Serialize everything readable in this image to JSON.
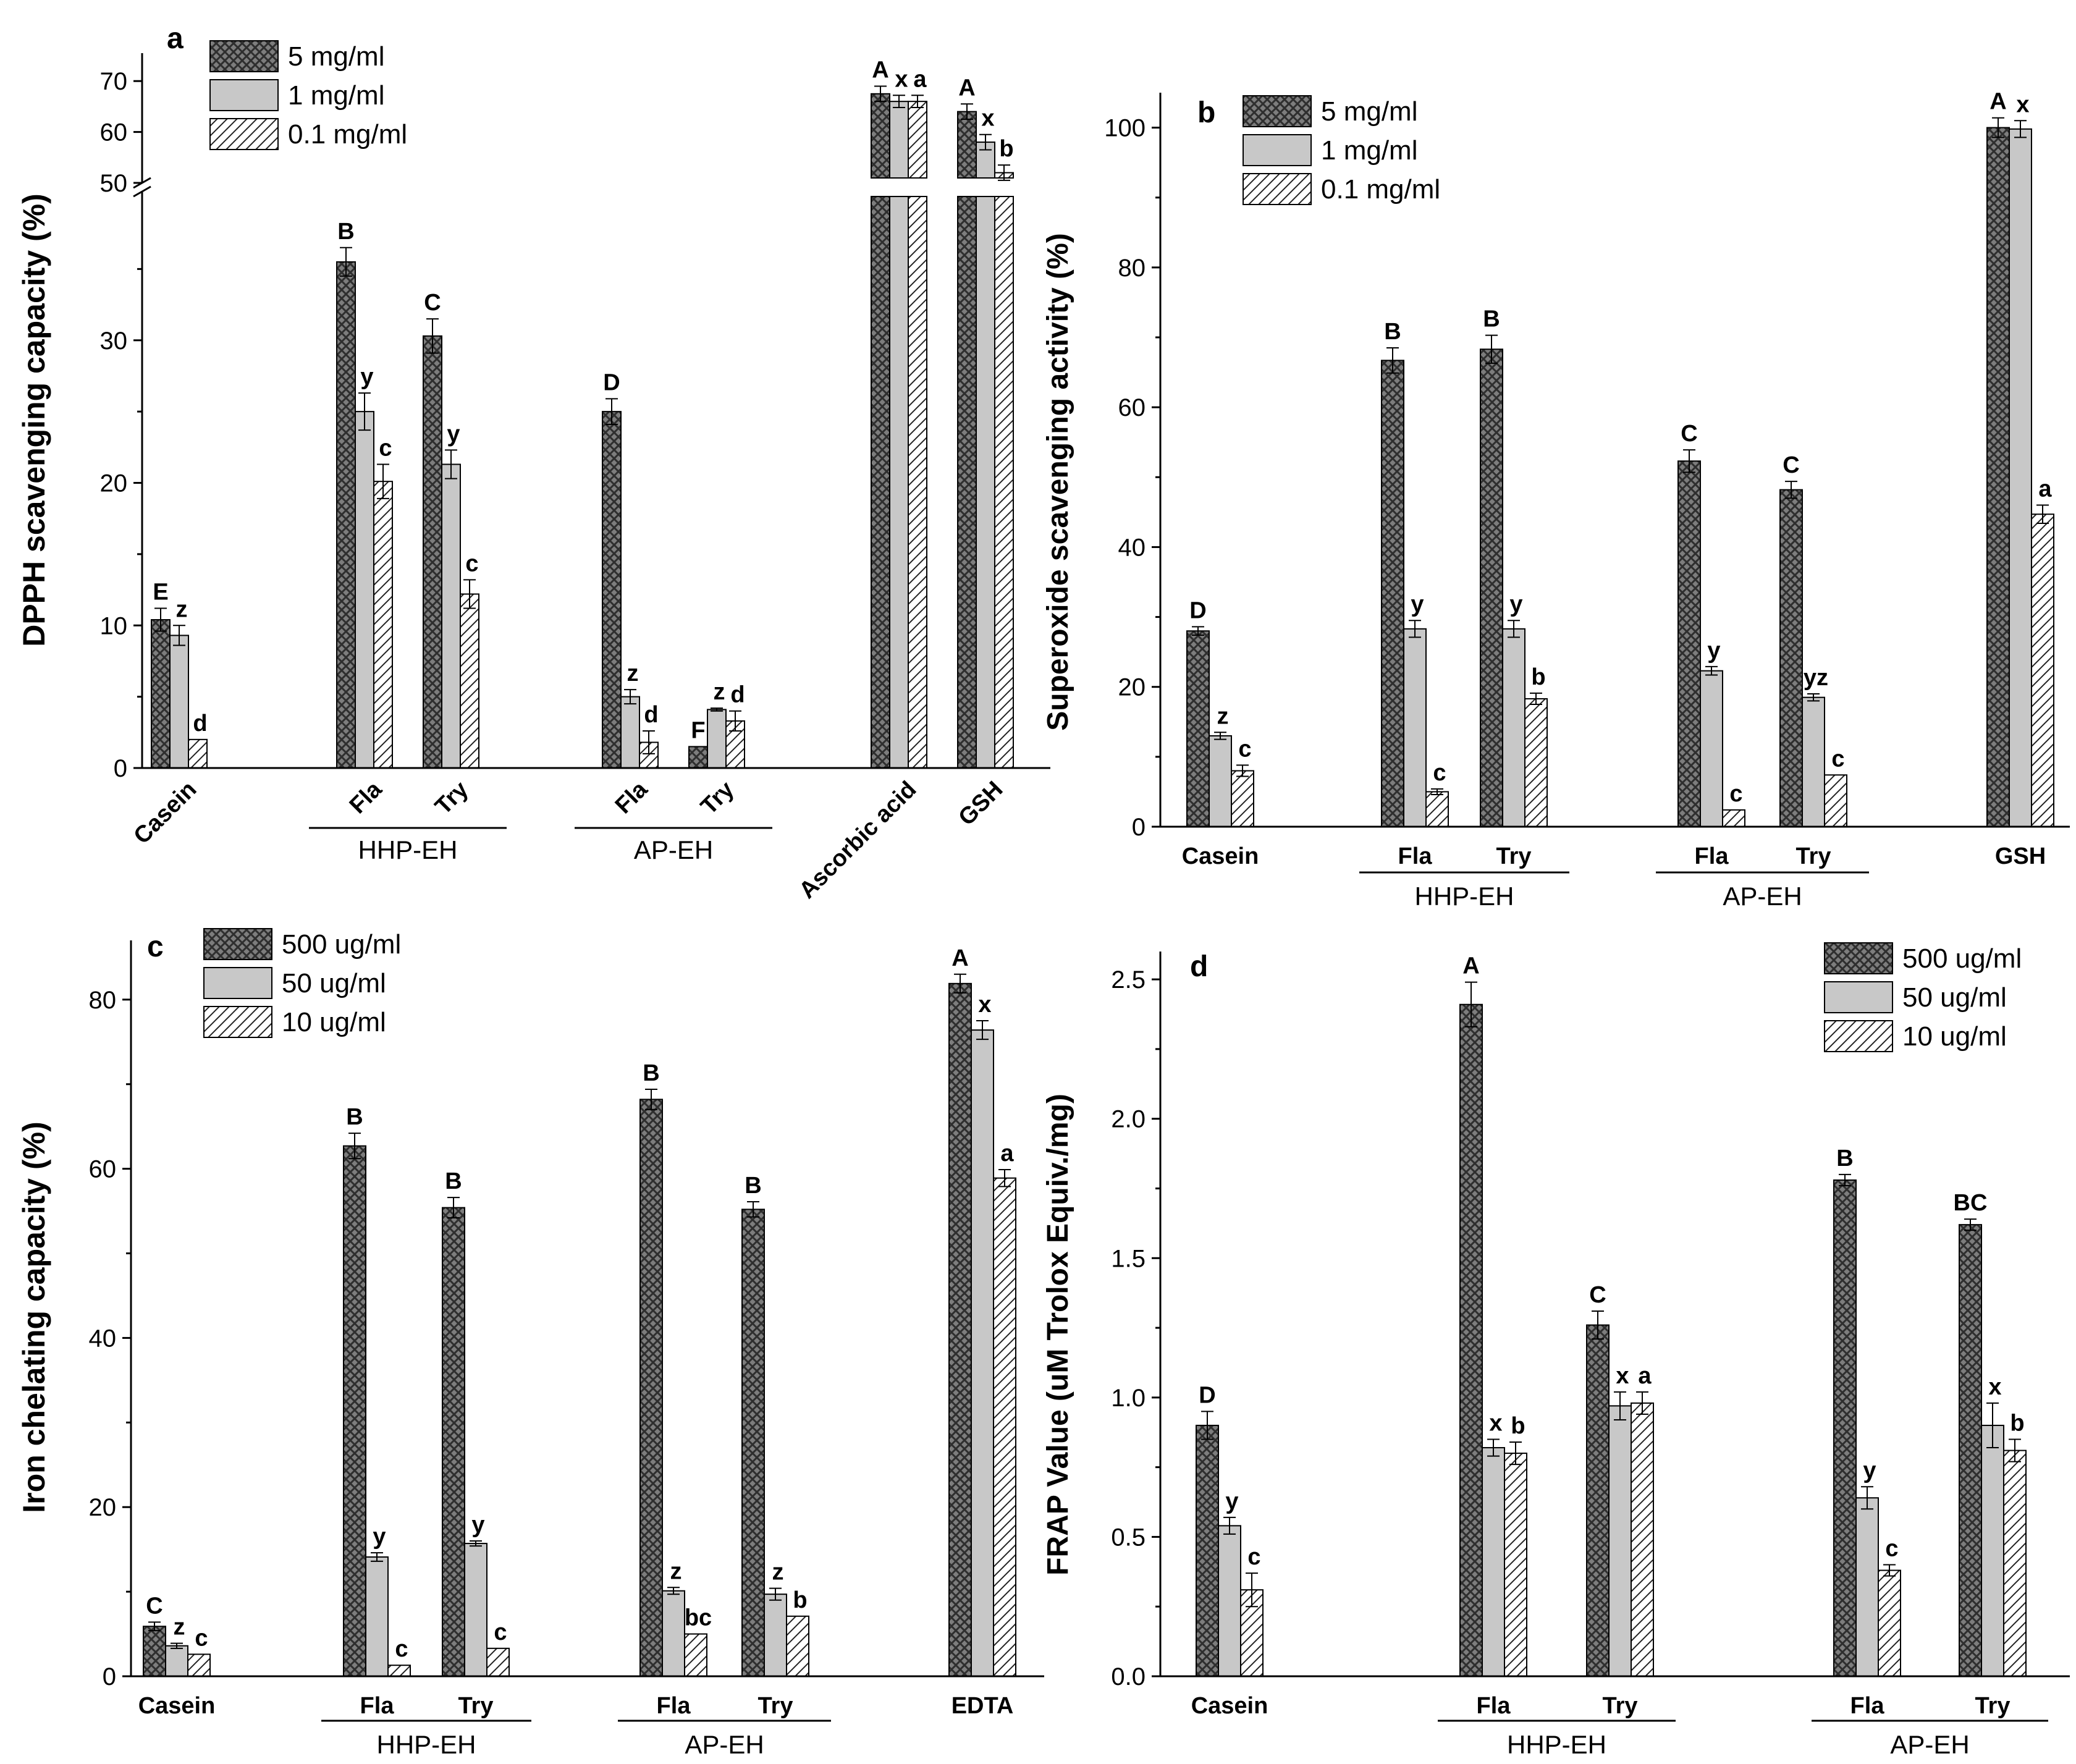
{
  "chart_data": [
    {
      "type": "bar",
      "panel_label": "a",
      "ylabel": "DPPH scavenging capacity (%)",
      "ylim": [
        0,
        40
      ],
      "yticks": [
        0,
        10,
        20,
        30
      ],
      "upper_ylim": [
        50,
        75
      ],
      "upper_yticks": [
        50,
        60,
        70
      ],
      "axis_break": [
        40,
        50
      ],
      "series_names": [
        "5 mg/ml",
        "1 mg/ml",
        "0.1 mg/ml"
      ],
      "legend_position": "top-left",
      "tick_rotation": -45,
      "groups": [
        {
          "label": "Casein",
          "values": [
            10.4,
            9.3,
            2.0
          ],
          "errors": [
            0.8,
            0.7,
            0
          ],
          "letters": [
            "E",
            "z",
            "d"
          ]
        },
        {
          "label": "Fla",
          "values": [
            35.5,
            25.0,
            20.1
          ],
          "errors": [
            1.0,
            1.3,
            1.2
          ],
          "letters": [
            "B",
            "y",
            "c"
          ]
        },
        {
          "label": "Try",
          "values": [
            30.3,
            21.3,
            12.2
          ],
          "errors": [
            1.2,
            1.0,
            1.0
          ],
          "letters": [
            "C",
            "y",
            "c"
          ]
        },
        {
          "label": "Fla",
          "values": [
            25.0,
            5.0,
            1.8
          ],
          "errors": [
            0.9,
            0.5,
            0.8
          ],
          "letters": [
            "D",
            "z",
            "d"
          ]
        },
        {
          "label": "Try",
          "values": [
            1.5,
            4.1,
            3.3
          ],
          "errors": [
            0,
            0.1,
            0.7
          ],
          "letters": [
            "F",
            "z",
            "d"
          ]
        },
        {
          "label": "Ascorbic acid",
          "values": [
            67.5,
            66.0,
            66.0
          ],
          "errors": [
            1.5,
            1.2,
            1.2
          ],
          "letters": [
            "A",
            "x",
            "a"
          ]
        },
        {
          "label": "GSH",
          "values": [
            64.0,
            58.0,
            52.0
          ],
          "errors": [
            1.5,
            1.5,
            1.5
          ],
          "letters": [
            "A",
            "x",
            "b"
          ]
        }
      ],
      "group_labels": [
        {
          "label": "HHP-EH",
          "groups": [
            1,
            2
          ]
        },
        {
          "label": "AP-EH",
          "groups": [
            3,
            4
          ]
        }
      ]
    },
    {
      "type": "bar",
      "panel_label": "b",
      "ylabel": "Superoxide scavenging activity (%)",
      "ylim": [
        0,
        105
      ],
      "yticks": [
        0,
        20,
        40,
        60,
        80,
        100
      ],
      "series_names": [
        "5 mg/ml",
        "1 mg/ml",
        "0.1 mg/ml"
      ],
      "legend_position": "top-left",
      "groups": [
        {
          "label": "Casein",
          "values": [
            28.0,
            13.0,
            8.0
          ],
          "errors": [
            0.6,
            0.5,
            0.8
          ],
          "letters": [
            "D",
            "z",
            "c"
          ]
        },
        {
          "label": "Fla",
          "values": [
            66.7,
            28.3,
            5.0
          ],
          "errors": [
            1.8,
            1.2,
            0.4
          ],
          "letters": [
            "B",
            "y",
            "c"
          ]
        },
        {
          "label": "Try",
          "values": [
            68.3,
            28.3,
            18.3
          ],
          "errors": [
            2.0,
            1.2,
            0.8
          ],
          "letters": [
            "B",
            "y",
            "b"
          ]
        },
        {
          "label": "Fla",
          "values": [
            52.3,
            22.3,
            2.4
          ],
          "errors": [
            1.6,
            0.6,
            0
          ],
          "letters": [
            "C",
            "y",
            "c"
          ]
        },
        {
          "label": "Try",
          "values": [
            48.2,
            18.5,
            7.4
          ],
          "errors": [
            1.2,
            0.5,
            0
          ],
          "letters": [
            "C",
            "yz",
            "c"
          ]
        },
        {
          "label": "GSH",
          "values": [
            100.0,
            99.8,
            44.7
          ],
          "errors": [
            1.4,
            1.2,
            1.3
          ],
          "letters": [
            "A",
            "x",
            "a"
          ]
        }
      ],
      "group_labels": [
        {
          "label": "HHP-EH",
          "groups": [
            1,
            2
          ]
        },
        {
          "label": "AP-EH",
          "groups": [
            3,
            4
          ]
        }
      ]
    },
    {
      "type": "bar",
      "panel_label": "c",
      "ylabel": "Iron chelating capacity (%)",
      "ylim": [
        0,
        87
      ],
      "yticks": [
        0,
        20,
        40,
        60,
        80
      ],
      "series_names": [
        "500 ug/ml",
        "50 ug/ml",
        "10 ug/ml"
      ],
      "legend_position": "top-left",
      "groups": [
        {
          "label": "Casein",
          "values": [
            5.9,
            3.6,
            2.6
          ],
          "errors": [
            0.5,
            0.3,
            0
          ],
          "letters": [
            "C",
            "z",
            "c"
          ]
        },
        {
          "label": "Fla",
          "values": [
            62.7,
            14.1,
            1.3
          ],
          "errors": [
            1.5,
            0.5,
            0
          ],
          "letters": [
            "B",
            "y",
            "c"
          ]
        },
        {
          "label": "Try",
          "values": [
            55.4,
            15.7,
            3.3
          ],
          "errors": [
            1.2,
            0.3,
            0
          ],
          "letters": [
            "B",
            "y",
            "c"
          ]
        },
        {
          "label": "Fla",
          "values": [
            68.2,
            10.1,
            5.0
          ],
          "errors": [
            1.2,
            0.4,
            0
          ],
          "letters": [
            "B",
            "z",
            "bc"
          ]
        },
        {
          "label": "Try",
          "values": [
            55.2,
            9.7,
            7.1
          ],
          "errors": [
            0.9,
            0.7,
            0
          ],
          "letters": [
            "B",
            "z",
            "b"
          ]
        },
        {
          "label": "EDTA",
          "values": [
            81.9,
            76.4,
            58.9
          ],
          "errors": [
            1.1,
            1.1,
            1.0
          ],
          "letters": [
            "A",
            "x",
            "a"
          ]
        }
      ],
      "group_labels": [
        {
          "label": "HHP-EH",
          "groups": [
            1,
            2
          ]
        },
        {
          "label": "AP-EH",
          "groups": [
            3,
            4
          ]
        }
      ]
    },
    {
      "type": "bar",
      "panel_label": "d",
      "ylabel": "FRAP Value (uM Trolox Equiv./mg)",
      "ylim": [
        0,
        2.6
      ],
      "yticks": [
        0.0,
        0.5,
        1.0,
        1.5,
        2.0,
        2.5
      ],
      "ytick_labels": [
        "0.0",
        "0.5",
        "1.0",
        "1.5",
        "2.0",
        "2.5"
      ],
      "series_names": [
        "500 ug/ml",
        "50 ug/ml",
        "10 ug/ml"
      ],
      "legend_position": "top-right",
      "groups": [
        {
          "label": "Casein",
          "values": [
            0.9,
            0.54,
            0.31
          ],
          "errors": [
            0.05,
            0.03,
            0.06
          ],
          "letters": [
            "D",
            "y",
            "c"
          ]
        },
        {
          "label": "Fla",
          "values": [
            2.41,
            0.82,
            0.8
          ],
          "errors": [
            0.08,
            0.03,
            0.04
          ],
          "letters": [
            "A",
            "x",
            "b"
          ]
        },
        {
          "label": "Try",
          "values": [
            1.26,
            0.97,
            0.98
          ],
          "errors": [
            0.05,
            0.05,
            0.04
          ],
          "letters": [
            "C",
            "x",
            "a"
          ]
        },
        {
          "label": "Fla",
          "values": [
            1.78,
            0.64,
            0.38
          ],
          "errors": [
            0.02,
            0.04,
            0.02
          ],
          "letters": [
            "B",
            "y",
            "c"
          ]
        },
        {
          "label": "Try",
          "values": [
            1.62,
            0.9,
            0.81
          ],
          "errors": [
            0.02,
            0.08,
            0.04
          ],
          "letters": [
            "BC",
            "x",
            "b"
          ]
        }
      ],
      "group_labels": [
        {
          "label": "HHP-EH",
          "groups": [
            1,
            2
          ]
        },
        {
          "label": "AP-EH",
          "groups": [
            3,
            4
          ]
        }
      ]
    }
  ]
}
